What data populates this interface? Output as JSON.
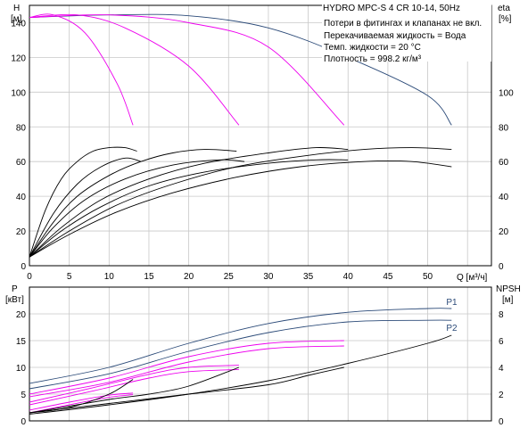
{
  "info": {
    "title": "HYDRO MPC-S 4 CR 10-14, 50Hz",
    "lines": [
      "Потери в фитингах и клапанах не вкл.",
      "Перекачиваемая жидкость = Вода",
      "Темп. жидкости = 20 °C",
      "Плотность = 998.2 кг/м³"
    ]
  },
  "colors": {
    "blue": "#2b4a78",
    "magenta": "#ee00ee",
    "black": "#000000",
    "grid": "#c8c8c8"
  },
  "chart_data": [
    {
      "type": "line",
      "x_label": "Q [м³/ч]",
      "x_ticks": [
        "0",
        "5",
        "10",
        "15",
        "20",
        "25",
        "30",
        "35",
        "40",
        "45",
        "50"
      ],
      "xlim": [
        0,
        58
      ],
      "left_axis": {
        "label": "H",
        "unit": "[м]",
        "ylim": [
          0,
          150
        ],
        "ticks": [
          "0",
          "20",
          "40",
          "60",
          "80",
          "100",
          "120",
          "140"
        ]
      },
      "right_axis": {
        "label": "eta",
        "unit": "[%]",
        "ylim": [
          0,
          150
        ],
        "ticks": [
          "0",
          "20",
          "40",
          "60",
          "80",
          "100"
        ]
      },
      "grid": true,
      "series": [
        {
          "group": "H",
          "color": "blue",
          "points": [
            [
              0,
              143
            ],
            [
              10,
              144.5
            ],
            [
              20,
              144
            ],
            [
              30,
              137
            ],
            [
              40,
              120
            ],
            [
              50,
              98
            ],
            [
              53,
              81
            ]
          ]
        },
        {
          "group": "H",
          "color": "magenta",
          "points": [
            [
              0,
              143
            ],
            [
              10,
              144.5
            ],
            [
              20,
              140
            ],
            [
              30,
              126
            ],
            [
              39.5,
              81
            ]
          ]
        },
        {
          "group": "H",
          "color": "magenta",
          "points": [
            [
              0,
              143
            ],
            [
              6,
              144.5
            ],
            [
              12,
              137
            ],
            [
              20,
              115
            ],
            [
              26.3,
              81
            ]
          ]
        },
        {
          "group": "H",
          "color": "magenta",
          "points": [
            [
              0,
              143
            ],
            [
              3,
              144.5
            ],
            [
              7,
              134
            ],
            [
              11,
              105
            ],
            [
              13,
              81
            ]
          ]
        },
        {
          "group": "eta",
          "color": "black",
          "points": [
            [
              0,
              5
            ],
            [
              2,
              32
            ],
            [
              4,
              50
            ],
            [
              6,
              60
            ],
            [
              8,
              66
            ],
            [
              10,
              68
            ],
            [
              12,
              68
            ],
            [
              13.5,
              66
            ]
          ]
        },
        {
          "group": "eta",
          "color": "black",
          "points": [
            [
              0,
              5
            ],
            [
              3,
              30
            ],
            [
              6,
              47
            ],
            [
              9,
              57
            ],
            [
              12,
              62
            ],
            [
              14,
              60
            ]
          ]
        },
        {
          "group": "eta",
          "color": "black",
          "points": [
            [
              0,
              5
            ],
            [
              3,
              25
            ],
            [
              6,
              40
            ],
            [
              10,
              52
            ],
            [
              14,
              60
            ],
            [
              18,
              65
            ],
            [
              22,
              67
            ],
            [
              26,
              66
            ]
          ]
        },
        {
          "group": "eta",
          "color": "black",
          "points": [
            [
              0,
              5
            ],
            [
              3,
              22
            ],
            [
              7,
              38
            ],
            [
              12,
              50
            ],
            [
              18,
              58
            ],
            [
              24,
              61
            ],
            [
              27,
              60
            ]
          ]
        },
        {
          "group": "eta",
          "color": "black",
          "points": [
            [
              0,
              5
            ],
            [
              4,
              22
            ],
            [
              9,
              38
            ],
            [
              15,
              50
            ],
            [
              22,
              59
            ],
            [
              30,
              65
            ],
            [
              36,
              68
            ],
            [
              40,
              67
            ]
          ]
        },
        {
          "group": "eta",
          "color": "black",
          "points": [
            [
              0,
              5
            ],
            [
              4,
              20
            ],
            [
              9,
              34
            ],
            [
              15,
              46
            ],
            [
              22,
              54
            ],
            [
              30,
              59
            ],
            [
              36,
              61
            ],
            [
              40,
              61
            ]
          ]
        },
        {
          "group": "eta",
          "color": "black",
          "points": [
            [
              0,
              5
            ],
            [
              5,
              20
            ],
            [
              11,
              35
            ],
            [
              18,
              47
            ],
            [
              26,
              57
            ],
            [
              34,
              63
            ],
            [
              42,
              67
            ],
            [
              48,
              68
            ],
            [
              53,
              67
            ]
          ]
        },
        {
          "group": "eta",
          "color": "black",
          "points": [
            [
              0,
              5
            ],
            [
              5,
              18
            ],
            [
              11,
              31
            ],
            [
              18,
              42
            ],
            [
              26,
              51
            ],
            [
              34,
              57
            ],
            [
              42,
              60
            ],
            [
              48,
              60
            ],
            [
              53,
              57
            ]
          ]
        }
      ]
    },
    {
      "type": "line",
      "x_label": "",
      "xlim": [
        0,
        58
      ],
      "left_axis": {
        "label": "P",
        "unit": "[кВт]",
        "ylim": [
          0,
          25
        ],
        "ticks": [
          "0",
          "5",
          "10",
          "15",
          "20"
        ]
      },
      "right_axis": {
        "label": "NPSH",
        "unit": "[м]",
        "ylim": [
          0,
          10
        ],
        "ticks": [
          "0",
          "2",
          "4",
          "6",
          "8"
        ]
      },
      "grid": true,
      "series": [
        {
          "name": "P1",
          "group": "P",
          "color": "blue",
          "points": [
            [
              0,
              7
            ],
            [
              10,
              10
            ],
            [
              20,
              14.5
            ],
            [
              30,
              18.2
            ],
            [
              40,
              20.3
            ],
            [
              50,
              21
            ],
            [
              53,
              21
            ]
          ]
        },
        {
          "name": "P2",
          "group": "P",
          "color": "blue",
          "points": [
            [
              0,
              6
            ],
            [
              10,
              8.8
            ],
            [
              20,
              13
            ],
            [
              30,
              16.5
            ],
            [
              40,
              18.5
            ],
            [
              50,
              18.8
            ],
            [
              53,
              18.8
            ]
          ]
        },
        {
          "group": "P",
          "color": "magenta",
          "points": [
            [
              0,
              5
            ],
            [
              10,
              8
            ],
            [
              20,
              12
            ],
            [
              30,
              14.5
            ],
            [
              39.5,
              15
            ]
          ]
        },
        {
          "group": "P",
          "color": "magenta",
          "points": [
            [
              0,
              4.5
            ],
            [
              10,
              7.2
            ],
            [
              20,
              11
            ],
            [
              30,
              13.5
            ],
            [
              39.5,
              14
            ]
          ]
        },
        {
          "group": "P",
          "color": "magenta",
          "points": [
            [
              0,
              3.5
            ],
            [
              8,
              6.2
            ],
            [
              15,
              8.7
            ],
            [
              20,
              10
            ],
            [
              26.3,
              10.4
            ]
          ]
        },
        {
          "group": "P",
          "color": "magenta",
          "points": [
            [
              0,
              3
            ],
            [
              8,
              5.6
            ],
            [
              15,
              8
            ],
            [
              20,
              9.2
            ],
            [
              26.3,
              9.6
            ]
          ]
        },
        {
          "group": "P",
          "color": "magenta",
          "points": [
            [
              0,
              2
            ],
            [
              5,
              3.5
            ],
            [
              10,
              4.8
            ],
            [
              13,
              5.2
            ]
          ]
        },
        {
          "group": "P",
          "color": "magenta",
          "points": [
            [
              0,
              1.5
            ],
            [
              5,
              3
            ],
            [
              10,
              4.4
            ],
            [
              13,
              4.9
            ]
          ]
        },
        {
          "group": "NPSH",
          "color": "black",
          "points": [
            [
              0,
              0.5
            ],
            [
              10,
              1.2
            ],
            [
              20,
              2
            ],
            [
              30,
              3
            ],
            [
              40,
              4.3
            ],
            [
              50,
              5.8
            ],
            [
              53,
              6.4
            ]
          ]
        },
        {
          "group": "NPSH",
          "color": "black",
          "points": [
            [
              0,
              0.6
            ],
            [
              10,
              1.3
            ],
            [
              20,
              2
            ],
            [
              30,
              2.7
            ],
            [
              35,
              3.4
            ],
            [
              39.5,
              4
            ]
          ]
        },
        {
          "group": "NPSH",
          "color": "black",
          "points": [
            [
              0,
              0.6
            ],
            [
              10,
              1.6
            ],
            [
              15,
              2
            ],
            [
              20,
              2.6
            ],
            [
              26.3,
              4
            ]
          ]
        },
        {
          "group": "NPSH",
          "color": "black",
          "points": [
            [
              0,
              0.6
            ],
            [
              5,
              1
            ],
            [
              10,
              2
            ],
            [
              13,
              3.1
            ]
          ]
        }
      ]
    }
  ]
}
